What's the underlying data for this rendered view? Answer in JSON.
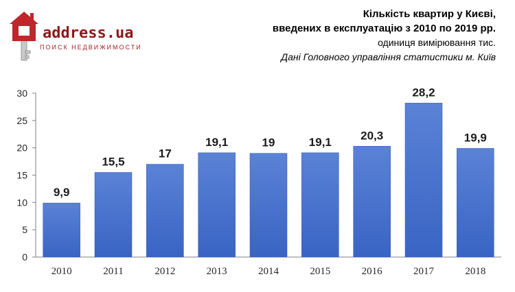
{
  "logo": {
    "brand": "address.ua",
    "tagline": "ПОИСК НЕДВИЖИМОСТИ"
  },
  "titles": {
    "line1": "Кількість квартир у Києві,",
    "line2": "введених в експлуатацію з 2010 по 2019 рр.",
    "line3": "одиниця вимірювання тис.",
    "line4": "Дані Головного управління статистики м. Київ"
  },
  "colors": {
    "bar_top": "#5a82d6",
    "bar_bottom": "#3a64c4",
    "logo_red": "#c0262b"
  },
  "chart_data": {
    "type": "bar",
    "categories": [
      "2010",
      "2011",
      "2012",
      "2013",
      "2014",
      "2015",
      "2016",
      "2017",
      "2018"
    ],
    "values": [
      9.9,
      15.5,
      17,
      19.1,
      19,
      19.1,
      20.3,
      28.2,
      19.9
    ],
    "value_labels": [
      "9,9",
      "15,5",
      "17",
      "19,1",
      "19",
      "19,1",
      "20,3",
      "28,2",
      "19,9"
    ],
    "yticks": [
      0,
      5,
      10,
      15,
      20,
      25,
      30
    ],
    "ylim": [
      0,
      30
    ],
    "grid": false,
    "legend": "none"
  }
}
